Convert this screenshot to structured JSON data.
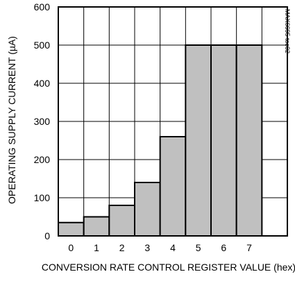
{
  "chart_data": {
    "type": "bar",
    "categories": [
      "0",
      "1",
      "2",
      "3",
      "4",
      "5",
      "6",
      "7"
    ],
    "values": [
      35,
      50,
      80,
      140,
      260,
      500,
      500,
      500
    ],
    "xlabel": "CONVERSION RATE CONTROL REGISTER VALUE (hex)",
    "ylabel": "OPERATING SUPPLY CURRENT (µA)",
    "ylim": [
      0,
      600
    ],
    "yticks": [
      0,
      100,
      200,
      300,
      400,
      500,
      600
    ],
    "grid": true,
    "legend": "none",
    "figure_id": "MAX6695 toc02",
    "colors": {
      "bar_fill": "#c0c0c0",
      "bar_stroke": "#000000",
      "grid": "#000000"
    }
  }
}
